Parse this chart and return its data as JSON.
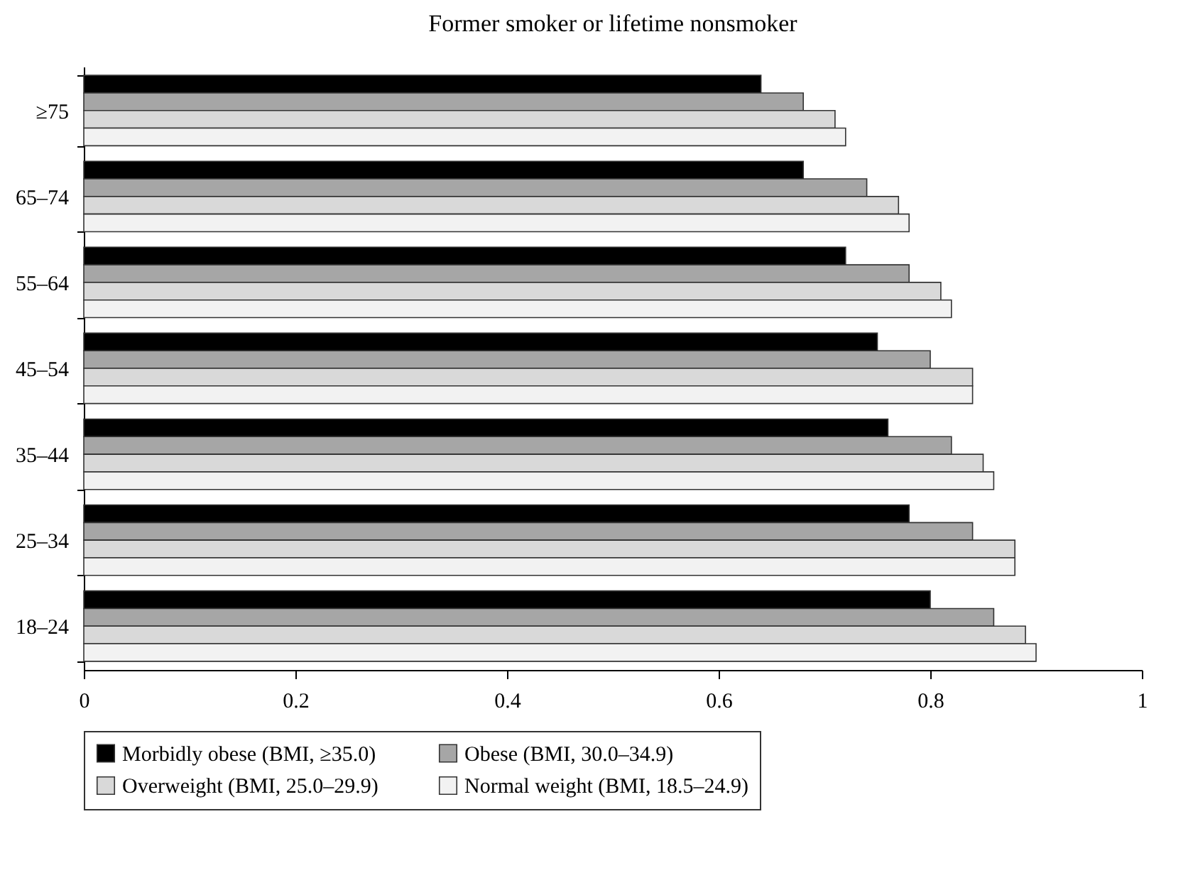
{
  "chart_data": {
    "type": "bar",
    "orientation": "horizontal",
    "title": "Former smoker or lifetime nonsmoker",
    "categories": [
      "≥75",
      "65–74",
      "55–64",
      "45–54",
      "35–44",
      "25–34",
      "18–24"
    ],
    "series": [
      {
        "name": "Morbidly obese (BMI, ≥35.0)",
        "color": "#000000",
        "values": [
          0.64,
          0.68,
          0.72,
          0.75,
          0.76,
          0.78,
          0.8
        ]
      },
      {
        "name": "Obese (BMI, 30.0–34.9)",
        "color": "#a6a6a6",
        "values": [
          0.68,
          0.74,
          0.78,
          0.8,
          0.82,
          0.84,
          0.86
        ]
      },
      {
        "name": "Overweight (BMI, 25.0–29.9)",
        "color": "#d9d9d9",
        "values": [
          0.71,
          0.77,
          0.81,
          0.84,
          0.85,
          0.88,
          0.89
        ]
      },
      {
        "name": "Normal weight (BMI, 18.5–24.9)",
        "color": "#f2f2f2",
        "values": [
          0.72,
          0.78,
          0.82,
          0.84,
          0.86,
          0.88,
          0.9
        ]
      }
    ],
    "xlim": [
      0,
      1
    ],
    "xticks": [
      0,
      0.2,
      0.4,
      0.6,
      0.8,
      1
    ],
    "grid": false,
    "legend": "bottom"
  }
}
